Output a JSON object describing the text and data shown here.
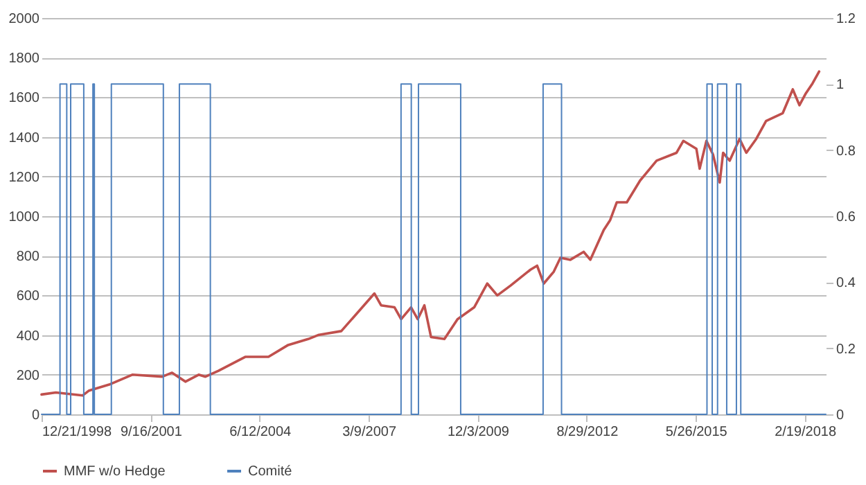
{
  "chart_data": {
    "type": "line",
    "legend": "bottom",
    "grid": "y",
    "xlim": [
      "1998-12-21",
      "2018-08-31"
    ],
    "xticks": [
      {
        "value": "1998-12-21",
        "label": "12/21/1998"
      },
      {
        "value": "2001-09-16",
        "label": "9/16/2001"
      },
      {
        "value": "2004-06-12",
        "label": "6/12/2004"
      },
      {
        "value": "2007-03-09",
        "label": "3/9/2007"
      },
      {
        "value": "2009-12-03",
        "label": "12/3/2009"
      },
      {
        "value": "2012-08-29",
        "label": "8/29/2012"
      },
      {
        "value": "2015-05-26",
        "label": "5/26/2015"
      },
      {
        "value": "2018-02-19",
        "label": "2/19/2018"
      }
    ],
    "ylim": [
      0,
      2000
    ],
    "yticks": [
      0,
      200,
      400,
      600,
      800,
      1000,
      1200,
      1400,
      1600,
      1800,
      2000
    ],
    "y2lim": [
      0,
      1.2
    ],
    "y2ticks": [
      0,
      0.2,
      0.4,
      0.6,
      0.8,
      1,
      1.2
    ],
    "series": [
      {
        "name": "MMF w/o Hedge",
        "color": "#c0504d",
        "type": "line",
        "x": [
          "1998-12-21",
          "1999-05",
          "2000-01",
          "2000-03",
          "2000-09",
          "2001-04",
          "2002-01",
          "2002-04",
          "2002-08",
          "2002-12",
          "2003-02",
          "2003-06",
          "2004-02",
          "2004-09",
          "2005-03",
          "2005-09",
          "2005-12",
          "2006-07",
          "2007-05",
          "2007-07",
          "2007-11",
          "2008-01",
          "2008-04",
          "2008-06",
          "2008-08",
          "2008-10",
          "2009-02",
          "2009-06",
          "2009-11",
          "2010-03",
          "2010-06",
          "2010-10",
          "2011-04",
          "2011-06",
          "2011-08",
          "2011-11",
          "2012-01",
          "2012-04",
          "2012-08",
          "2012-10",
          "2013-02",
          "2013-04",
          "2013-06",
          "2013-09",
          "2014-01",
          "2014-06",
          "2014-12",
          "2015-02",
          "2015-06",
          "2015-07",
          "2015-09",
          "2015-11",
          "2016-01",
          "2016-02",
          "2016-04",
          "2016-07",
          "2016-09",
          "2016-12",
          "2017-03",
          "2017-08",
          "2017-11",
          "2018-01",
          "2018-03",
          "2018-05",
          "2018-07"
        ],
        "values": [
          100,
          110,
          95,
          120,
          150,
          200,
          190,
          210,
          165,
          200,
          190,
          220,
          290,
          290,
          350,
          380,
          400,
          420,
          610,
          550,
          540,
          480,
          540,
          480,
          550,
          390,
          380,
          480,
          540,
          660,
          600,
          650,
          730,
          750,
          660,
          720,
          790,
          780,
          820,
          780,
          930,
          980,
          1070,
          1070,
          1180,
          1280,
          1320,
          1380,
          1340,
          1240,
          1380,
          1310,
          1170,
          1320,
          1280,
          1390,
          1320,
          1390,
          1480,
          1520,
          1640,
          1560,
          1620,
          1670,
          1730
        ]
      },
      {
        "name": "Comité",
        "color": "#4f81bd",
        "type": "step",
        "axis": "y2",
        "x": [
          "1998-12-21",
          "1999-06-08",
          "1999-08-09",
          "1999-09-14",
          "2000-01-12",
          "2000-04-05",
          "2000-04-18",
          "2000-09-21",
          "2002-01-11",
          "2002-06-07",
          "2003-03-18",
          "2007-12-31",
          "2008-04-03",
          "2008-06-08",
          "2009-06-30",
          "2011-07-26",
          "2012-01-11",
          "2015-09-06",
          "2015-10-24",
          "2015-12-12",
          "2016-03-05",
          "2016-06-02",
          "2016-07-12",
          "2018-08-31"
        ],
        "values": [
          0,
          1,
          0,
          1,
          0,
          1,
          0,
          1,
          0,
          1,
          0,
          1,
          0,
          1,
          0,
          1,
          0,
          1,
          0,
          1,
          0,
          1,
          0,
          0
        ]
      }
    ]
  }
}
